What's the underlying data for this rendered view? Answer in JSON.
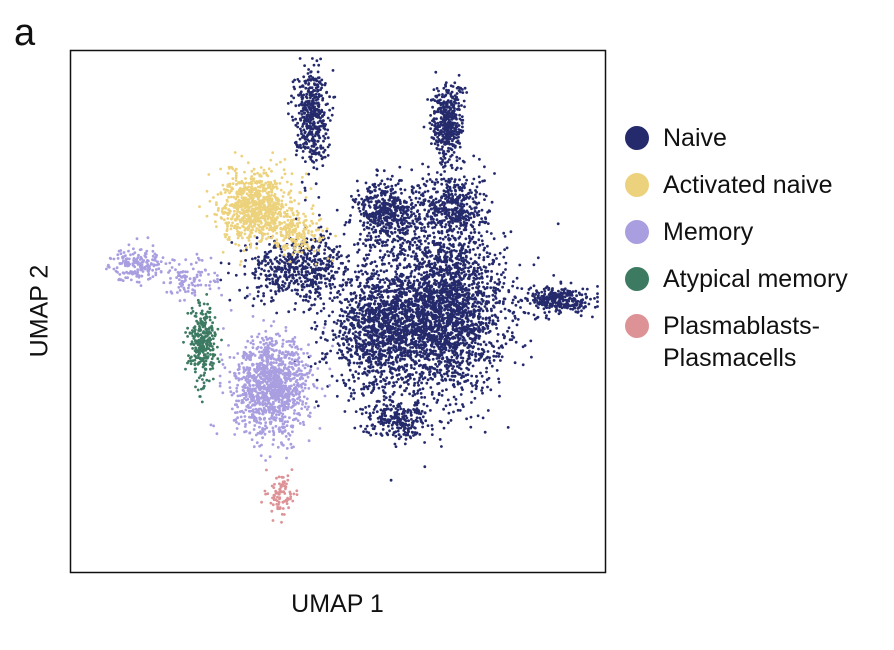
{
  "panel_label": "a",
  "chart_data": {
    "type": "scatter",
    "title": "",
    "xlabel": "UMAP 1",
    "ylabel": "UMAP 2",
    "xlim": [
      -1.15,
      1.3
    ],
    "ylim": [
      -1.2,
      1.2
    ],
    "ticks": "none",
    "grid": false,
    "legend": "right",
    "series": [
      {
        "name": "Naive",
        "color": "#242a6b",
        "clusters": [
          {
            "center": [
              0.55,
              0.0
            ],
            "spread": [
              0.24,
              0.3
            ],
            "count": 2600
          },
          {
            "center": [
              0.25,
              -0.1
            ],
            "spread": [
              0.18,
              0.22
            ],
            "count": 1000
          },
          {
            "center": [
              0.3,
              0.45
            ],
            "spread": [
              0.12,
              0.12
            ],
            "count": 500
          },
          {
            "center": [
              -0.1,
              0.2
            ],
            "spread": [
              0.2,
              0.12
            ],
            "count": 550
          },
          {
            "center": [
              0.6,
              0.48
            ],
            "spread": [
              0.12,
              0.14
            ],
            "count": 450
          },
          {
            "center": [
              -0.05,
              0.91
            ],
            "spread": [
              0.06,
              0.18
            ],
            "count": 450
          },
          {
            "center": [
              0.58,
              0.87
            ],
            "spread": [
              0.06,
              0.15
            ],
            "count": 420
          },
          {
            "center": [
              1.1,
              0.05
            ],
            "spread": [
              0.12,
              0.05
            ],
            "count": 300
          },
          {
            "center": [
              0.35,
              -0.5
            ],
            "spread": [
              0.12,
              0.07
            ],
            "count": 250
          }
        ]
      },
      {
        "name": "Activated naive",
        "color": "#edd27d",
        "clusters": [
          {
            "center": [
              -0.3,
              0.48
            ],
            "spread": [
              0.13,
              0.13
            ],
            "count": 850
          },
          {
            "center": [
              -0.1,
              0.36
            ],
            "spread": [
              0.1,
              0.08
            ],
            "count": 150
          }
        ]
      },
      {
        "name": "Memory",
        "color": "#a89ee0",
        "clusters": [
          {
            "center": [
              -0.23,
              -0.35
            ],
            "spread": [
              0.14,
              0.18
            ],
            "count": 1150
          },
          {
            "center": [
              -0.85,
              0.22
            ],
            "spread": [
              0.1,
              0.06
            ],
            "count": 180
          },
          {
            "center": [
              -0.6,
              0.15
            ],
            "spread": [
              0.1,
              0.08
            ],
            "count": 100
          }
        ]
      },
      {
        "name": "Atypical memory",
        "color": "#3c7a62",
        "clusters": [
          {
            "center": [
              -0.55,
              -0.15
            ],
            "spread": [
              0.05,
              0.14
            ],
            "count": 300
          }
        ]
      },
      {
        "name": "Plasmablasts-\nPlasmacells",
        "color": "#dd9296",
        "clusters": [
          {
            "center": [
              -0.18,
              -0.85
            ],
            "spread": [
              0.05,
              0.08
            ],
            "count": 90
          }
        ]
      }
    ]
  }
}
